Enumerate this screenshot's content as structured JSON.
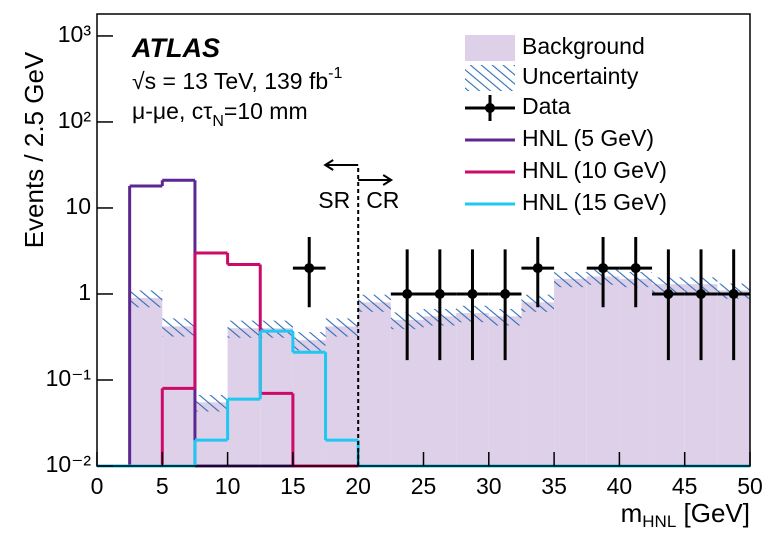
{
  "chart_data": {
    "type": "histogram",
    "annotations": {
      "experiment": "ATLAS",
      "energy": [
        "√s = 13 TeV, 139 fb",
        "-1"
      ],
      "channel": [
        "μ-μe, cτ",
        "N",
        "=10 mm"
      ],
      "sr": "SR",
      "cr": "CR"
    },
    "x_label": [
      "m",
      "HNL",
      " [GeV]"
    ],
    "y_label": "Events / 2.5 GeV",
    "bins": [
      0,
      2.5,
      5,
      7.5,
      10,
      12.5,
      15,
      17.5,
      20,
      22.5,
      25,
      27.5,
      30,
      32.5,
      35,
      37.5,
      40,
      42.5,
      45,
      47.5,
      50
    ],
    "background": {
      "name": "Background",
      "color": "#ddd0e8",
      "values": [
        0,
        0.9,
        0.42,
        0.055,
        0.4,
        0.4,
        0.29,
        0.42,
        0.8,
        0.5,
        0.55,
        0.6,
        0.55,
        0.8,
        1.5,
        1.6,
        1.5,
        1.3,
        1.3,
        1.1
      ]
    },
    "uncertainty": {
      "name": "Uncertainty",
      "color": "#2f6db5",
      "values": [
        0,
        0.2,
        0.1,
        0.012,
        0.09,
        0.09,
        0.07,
        0.1,
        0.18,
        0.11,
        0.12,
        0.13,
        0.12,
        0.18,
        0.3,
        0.32,
        0.3,
        0.26,
        0.26,
        0.22
      ]
    },
    "data": {
      "name": "Data",
      "color": "#000000",
      "x": [
        16.25,
        23.75,
        26.25,
        28.75,
        31.25,
        33.75,
        38.75,
        41.25,
        43.75,
        46.25,
        48.75
      ],
      "values": [
        2,
        1,
        1,
        1,
        1,
        2,
        2,
        2,
        1,
        1,
        1
      ],
      "errors_low": [
        1.3,
        0.83,
        0.83,
        0.83,
        0.83,
        1.3,
        1.3,
        1.3,
        0.83,
        0.83,
        0.83
      ],
      "errors_high": [
        2.6,
        2.3,
        2.3,
        2.3,
        2.3,
        2.6,
        2.6,
        2.6,
        2.3,
        2.3,
        2.3
      ]
    },
    "series": [
      {
        "name": "HNL (5 GeV)",
        "color": "#5c2791",
        "values": [
          0,
          18,
          21,
          0,
          0,
          0,
          0,
          0,
          0,
          0,
          0,
          0,
          0,
          0,
          0,
          0,
          0,
          0,
          0,
          0
        ]
      },
      {
        "name": "HNL (10 GeV)",
        "color": "#cc0a6a",
        "values": [
          0,
          0,
          0.08,
          3,
          2.2,
          0.07,
          0,
          0,
          0,
          0,
          0,
          0,
          0,
          0,
          0,
          0,
          0,
          0,
          0,
          0
        ]
      },
      {
        "name": "HNL (15 GeV)",
        "color": "#1ec8f0",
        "values": [
          0,
          0,
          0,
          0.02,
          0.06,
          0.37,
          0.21,
          0.02,
          0,
          0,
          0,
          0,
          0,
          0,
          0,
          0,
          0,
          0,
          0,
          0
        ]
      }
    ],
    "sr_cr_boundary": 20,
    "xlim": [
      0,
      50
    ],
    "xticks": [
      0,
      5,
      10,
      15,
      20,
      25,
      30,
      35,
      40,
      45,
      50
    ],
    "ylim": [
      0.01,
      1800
    ],
    "log_y": true,
    "yticks": [
      {
        "value": 0.01,
        "label": "10⁻²"
      },
      {
        "value": 0.1,
        "label": "10⁻¹"
      },
      1,
      10,
      {
        "value": 100,
        "label": "10²"
      },
      {
        "value": 1000,
        "label": "10³"
      }
    ]
  }
}
